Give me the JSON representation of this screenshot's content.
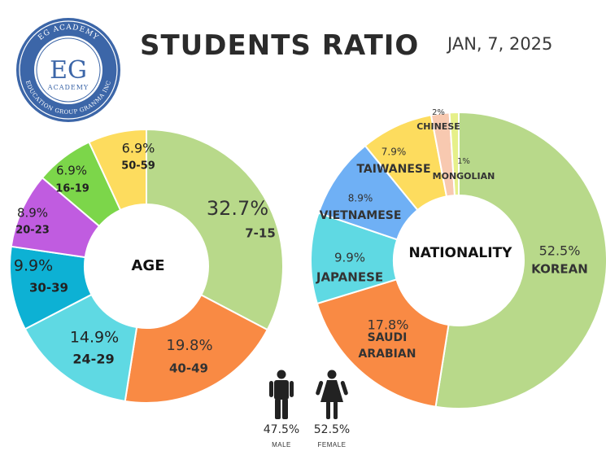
{
  "header": {
    "title": "STUDENTS RATIO",
    "date": "JAN, 7, 2025"
  },
  "logo": {
    "top_text": "EG ACADEMY",
    "monogram": "EG",
    "sub_text": "ACADEMY",
    "ring_text": "EDUCATION GROUP GRANMA INC",
    "colors": {
      "ring": "#3c66a8",
      "background": "#ffffff"
    }
  },
  "chart_data": [
    {
      "type": "pie",
      "center_label": "AGE",
      "slices": [
        {
          "label": "7-15",
          "value": 32.7,
          "display": "32.7%",
          "color": "#b8d98a"
        },
        {
          "label": "40-49",
          "value": 19.8,
          "display": "19.8%",
          "color": "#f98a44"
        },
        {
          "label": "24-29",
          "value": 14.9,
          "display": "14.9%",
          "color": "#5fd9e3"
        },
        {
          "label": "30-39",
          "value": 9.9,
          "display": "9.9%",
          "color": "#0db1d4"
        },
        {
          "label": "20-23",
          "value": 8.9,
          "display": "8.9%",
          "color": "#c05ce0"
        },
        {
          "label": "16-19",
          "value": 6.9,
          "display": "6.9%",
          "color": "#7cd64a"
        },
        {
          "label": "50-59",
          "value": 6.9,
          "display": "6.9%",
          "color": "#fddc5e"
        }
      ]
    },
    {
      "type": "pie",
      "center_label": "NATIONALITY",
      "slices": [
        {
          "label": "KOREAN",
          "value": 52.5,
          "display": "52.5%",
          "color": "#b8d98a"
        },
        {
          "label": "SAUDI ARABIAN",
          "value": 17.8,
          "display": "17.8%",
          "color": "#f98a44"
        },
        {
          "label": "JAPANESE",
          "value": 9.9,
          "display": "9.9%",
          "color": "#5fd9e3"
        },
        {
          "label": "VIETNAMESE",
          "value": 8.9,
          "display": "8.9%",
          "color": "#6fb0f5"
        },
        {
          "label": "TAIWANESE",
          "value": 7.9,
          "display": "7.9%",
          "color": "#fddc5e"
        },
        {
          "label": "CHINESE",
          "value": 2,
          "display": "2%",
          "color": "#f8c9b0"
        },
        {
          "label": "MONGOLIAN",
          "value": 1,
          "display": "1%",
          "color": "#e6f08a"
        }
      ]
    }
  ],
  "gender": [
    {
      "icon": "male-icon",
      "percent": "47.5%",
      "label": "MALE"
    },
    {
      "icon": "female-icon",
      "percent": "52.5%",
      "label": "FEMALE"
    }
  ]
}
